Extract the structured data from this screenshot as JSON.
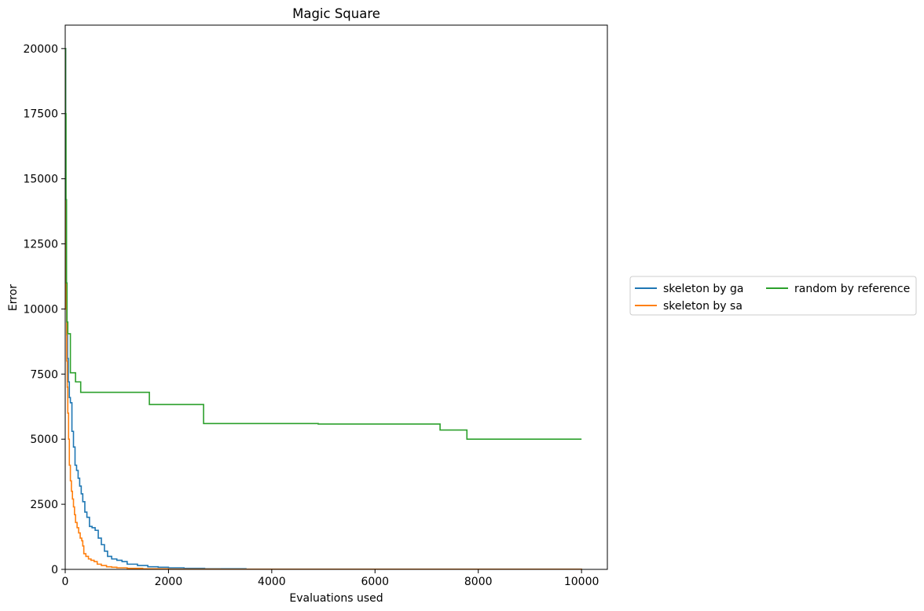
{
  "chart_data": {
    "type": "line",
    "title": "Magic Square",
    "xlabel": "Evaluations used",
    "ylabel": "Error",
    "xlim": [
      0,
      10500
    ],
    "ylim": [
      0,
      20900
    ],
    "xticks": [
      0,
      2000,
      4000,
      6000,
      8000,
      10000
    ],
    "yticks": [
      0,
      2500,
      5000,
      7500,
      10000,
      12500,
      15000,
      17500,
      20000
    ],
    "grid": false,
    "legend_position": "right-outside",
    "series": [
      {
        "name": "skeleton by ga",
        "color": "#1f77b4",
        "step": true,
        "x": [
          0,
          10,
          20,
          30,
          45,
          60,
          80,
          100,
          130,
          160,
          190,
          220,
          250,
          280,
          310,
          340,
          380,
          420,
          470,
          520,
          580,
          640,
          700,
          760,
          820,
          900,
          1000,
          1100,
          1200,
          1400,
          1600,
          1800,
          2000,
          2300,
          2700,
          3500,
          10000
        ],
        "y": [
          20000,
          14000,
          11000,
          9000,
          8100,
          7200,
          6600,
          6400,
          5300,
          4700,
          4000,
          3800,
          3500,
          3200,
          2900,
          2600,
          2200,
          2000,
          1650,
          1600,
          1500,
          1200,
          950,
          700,
          500,
          400,
          350,
          300,
          200,
          150,
          100,
          80,
          60,
          40,
          25,
          10,
          0
        ]
      },
      {
        "name": "skeleton by sa",
        "color": "#ff7f0e",
        "step": true,
        "x": [
          0,
          5,
          10,
          20,
          30,
          40,
          50,
          65,
          80,
          100,
          120,
          140,
          160,
          180,
          200,
          230,
          260,
          290,
          320,
          340,
          360,
          400,
          450,
          500,
          560,
          620,
          700,
          800,
          900,
          1000,
          1200,
          1500,
          2000,
          3000,
          10000
        ],
        "y": [
          20000,
          16000,
          12000,
          10000,
          8000,
          7000,
          6000,
          5000,
          4000,
          3400,
          3000,
          2700,
          2400,
          2100,
          1800,
          1600,
          1400,
          1200,
          1100,
          900,
          600,
          500,
          400,
          350,
          300,
          200,
          150,
          100,
          80,
          60,
          40,
          20,
          10,
          5,
          0
        ]
      },
      {
        "name": "random by reference",
        "color": "#2ca02c",
        "step": true,
        "x": [
          0,
          5,
          15,
          25,
          35,
          50,
          100,
          200,
          300,
          1630,
          2680,
          4900,
          7260,
          7780,
          10000
        ],
        "y": [
          20000,
          17500,
          14200,
          11000,
          9500,
          9050,
          7550,
          7200,
          6800,
          6330,
          5600,
          5580,
          5350,
          5000,
          5000
        ]
      }
    ]
  }
}
